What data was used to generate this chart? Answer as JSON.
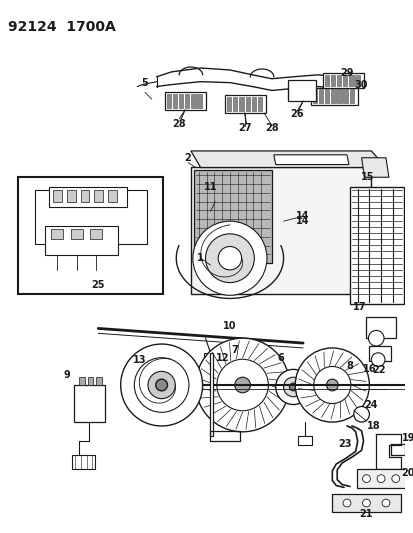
{
  "title": "92124  1700A",
  "bg_color": "#ffffff",
  "line_color": "#1a1a1a",
  "title_fontsize": 10,
  "label_fontsize": 7,
  "figsize": [
    4.14,
    5.33
  ],
  "dpi": 100
}
